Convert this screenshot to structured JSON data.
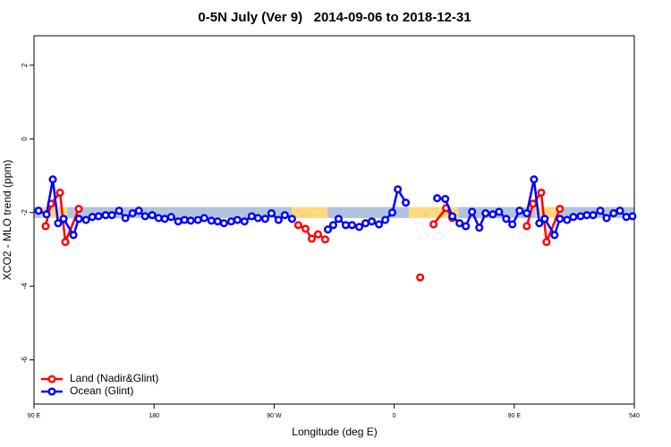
{
  "chart_data": {
    "type": "line",
    "title": "0-5N July (Ver 9)   2014-09-06 to 2018-12-31",
    "xlabel": "Longitude (deg E)",
    "ylabel": "XCO2 - MLO trend (ppm)",
    "xlim": [
      90,
      540
    ],
    "xticks": [
      {
        "value": 90,
        "label": "90 E"
      },
      180,
      {
        "value": 270,
        "label": "90 W"
      },
      {
        "value": 360,
        "label": "0"
      },
      {
        "value": 450,
        "label": "90 E"
      },
      540
    ],
    "ylim": [
      -7.2,
      2.8
    ],
    "yticks": [
      -6,
      -4,
      -2,
      0,
      2
    ],
    "legend": "bottom-left",
    "band_ylim": [
      -2.15,
      -1.85
    ],
    "bands": [
      {
        "xlim": [
          90,
          95
        ],
        "color": "#b0c4de"
      },
      {
        "xlim": [
          95,
          115
        ],
        "color": "#ffd980"
      },
      {
        "xlim": [
          115,
          283
        ],
        "color": "#b0c4de"
      },
      {
        "xlim": [
          283,
          310
        ],
        "color": "#ffd980"
      },
      {
        "xlim": [
          310,
          371
        ],
        "color": "#b0c4de"
      },
      {
        "xlim": [
          371,
          408
        ],
        "color": "#ffd980"
      },
      {
        "xlim": [
          408,
          466
        ],
        "color": "#b0c4de"
      },
      {
        "xlim": [
          466,
          484
        ],
        "color": "#ffd980"
      },
      {
        "xlim": [
          484,
          540
        ],
        "color": "#b0c4de"
      }
    ],
    "series": [
      {
        "name": "Land (Nadir&Glint)",
        "color": "#ff0000",
        "x": [
          98.7,
          102.8,
          109.5,
          113.5,
          123.6,
          null,
          288.1,
          293.5,
          298.2,
          302.9,
          308.3,
          null,
          379.5,
          null,
          389.5,
          398.9,
          403.6,
          null,
          459.4,
          464.1,
          470.2,
          474.2,
          484.2
        ],
        "values": [
          -2.37,
          -1.76,
          -1.46,
          -2.8,
          -1.9,
          null,
          -2.34,
          -2.44,
          -2.71,
          -2.59,
          -2.73,
          null,
          -3.76,
          null,
          -2.32,
          -1.88,
          -2.15,
          null,
          -2.37,
          -1.76,
          -1.46,
          -2.8,
          -1.9
        ]
      },
      {
        "name": "Ocean (Glint)",
        "color": "#0000ff",
        "x": [
          93.4,
          99.4,
          104.1,
          108.1,
          112.2,
          119.6,
          123.6,
          129,
          133.7,
          138.4,
          143.7,
          148.4,
          153.8,
          158.5,
          163.9,
          168.6,
          173.3,
          178.6,
          183.4,
          188,
          192.8,
          198.1,
          202.8,
          207.5,
          212.9,
          217.6,
          223,
          227.7,
          232.4,
          237.8,
          242.5,
          247.8,
          253.2,
          257.9,
          263.3,
          268,
          273.3,
          278,
          283.4,
          null,
          310.3,
          314.3,
          318.3,
          323.7,
          328.4,
          333.8,
          338.5,
          343.2,
          348.6,
          353.3,
          358.6,
          362.7,
          368.7,
          null,
          392.2,
          398.3,
          403.6,
          409,
          413.7,
          418.4,
          423.8,
          428.5,
          433.9,
          438.6,
          444,
          448.6,
          454,
          459.4,
          464.8,
          468.8,
          472.8,
          480.2,
          484.2,
          489.6,
          494.3,
          499.7,
          504.4,
          509.1,
          514.5,
          519.2,
          524.5,
          529.2,
          534,
          538.6
        ],
        "values": [
          -1.95,
          -2.05,
          -1.1,
          -2.29,
          -2.17,
          -2.61,
          -2.17,
          -2.2,
          -2.12,
          -2.1,
          -2.07,
          -2.07,
          -1.95,
          -2.15,
          -2.02,
          -1.95,
          -2.1,
          -2.07,
          -2.15,
          -2.17,
          -2.12,
          -2.24,
          -2.2,
          -2.22,
          -2.2,
          -2.15,
          -2.22,
          -2.24,
          -2.29,
          -2.24,
          -2.2,
          -2.24,
          -2.1,
          -2.15,
          -2.17,
          -2.02,
          -2.2,
          -2.07,
          -2.17,
          null,
          -2.46,
          -2.34,
          -2.17,
          -2.34,
          -2.34,
          -2.39,
          -2.29,
          -2.24,
          -2.32,
          -2.2,
          -2,
          -1.37,
          -1.73,
          null,
          -1.61,
          -1.63,
          -2.1,
          -2.29,
          -2.37,
          -1.98,
          -2.41,
          -2.02,
          -2.05,
          -1.98,
          -2.17,
          -2.32,
          -1.95,
          -2.02,
          -1.1,
          -2.29,
          -2.17,
          -2.61,
          -2.17,
          -2.2,
          -2.12,
          -2.1,
          -2.07,
          -2.07,
          -1.95,
          -2.15,
          -2.02,
          -1.95,
          -2.12,
          -2.1
        ]
      }
    ]
  }
}
